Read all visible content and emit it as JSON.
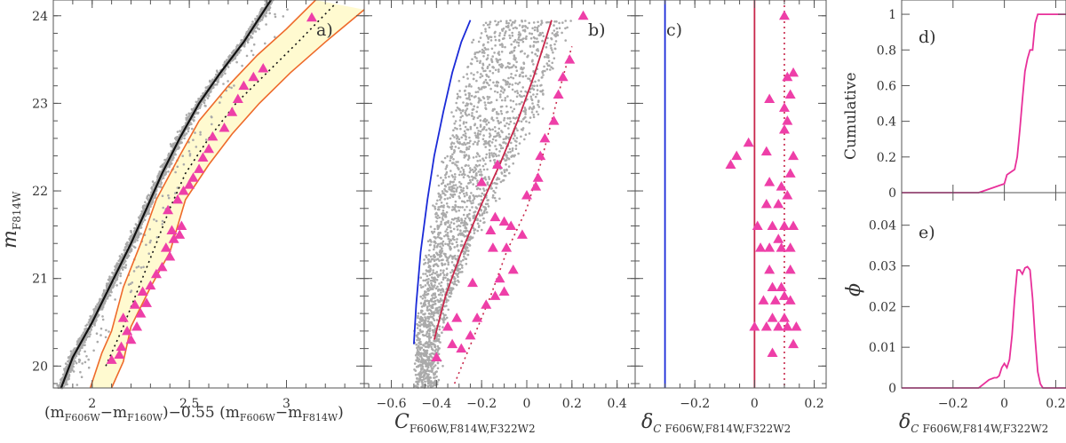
{
  "colors": {
    "triangle": "#ee3fa8",
    "band_edge": "#ee6a2a",
    "band_fill": "#fffad0",
    "fiducial": "#111111",
    "blue_line": "#1a2ad8",
    "red_line": "#c8264a",
    "pink_line": "#e8309a",
    "points": "#aaaaaa"
  },
  "chart_data": [
    {
      "panel": "a)",
      "type": "scatter",
      "xlabel": "(m F606W − m F160W) − 0.55 (m F606W − m F814W)",
      "ylabel": "m F814W",
      "xlim": [
        1.8,
        3.4
      ],
      "ylim": [
        24.18,
        19.75
      ],
      "xticks": [
        "2",
        "2.5",
        "3"
      ],
      "yticks": [
        "20",
        "21",
        "22",
        "23",
        "24"
      ],
      "fiducial": [
        [
          1.84,
          19.75
        ],
        [
          1.9,
          20.1
        ],
        [
          2.0,
          20.5
        ],
        [
          2.1,
          20.95
        ],
        [
          2.2,
          21.4
        ],
        [
          2.28,
          21.8
        ],
        [
          2.36,
          22.2
        ],
        [
          2.45,
          22.6
        ],
        [
          2.55,
          23.0
        ],
        [
          2.66,
          23.35
        ],
        [
          2.78,
          23.7
        ],
        [
          2.92,
          24.18
        ]
      ],
      "binary_line": [
        [
          2.07,
          20.0
        ],
        [
          2.16,
          20.45
        ],
        [
          2.24,
          20.9
        ],
        [
          2.33,
          21.4
        ],
        [
          2.4,
          21.8
        ],
        [
          2.48,
          22.2
        ],
        [
          2.6,
          22.6
        ],
        [
          2.74,
          23.0
        ],
        [
          2.9,
          23.35
        ],
        [
          3.06,
          23.7
        ],
        [
          3.27,
          24.18
        ]
      ],
      "band_left": [
        [
          1.99,
          19.75
        ],
        [
          2.05,
          20.15
        ],
        [
          2.1,
          20.4
        ],
        [
          2.16,
          20.9
        ],
        [
          2.25,
          21.4
        ],
        [
          2.33,
          21.9
        ],
        [
          2.45,
          22.4
        ],
        [
          2.55,
          22.8
        ],
        [
          2.7,
          23.2
        ],
        [
          2.85,
          23.55
        ],
        [
          3.0,
          23.85
        ],
        [
          3.15,
          24.18
        ]
      ],
      "band_right": [
        [
          2.1,
          19.75
        ],
        [
          2.16,
          20.05
        ],
        [
          2.2,
          20.45
        ],
        [
          2.3,
          20.9
        ],
        [
          2.4,
          21.3
        ],
        [
          2.48,
          21.9
        ],
        [
          2.6,
          22.3
        ],
        [
          2.72,
          22.65
        ],
        [
          2.86,
          23.0
        ],
        [
          3.02,
          23.35
        ],
        [
          3.2,
          23.7
        ],
        [
          3.4,
          24.07
        ]
      ],
      "binaries": [
        [
          2.1,
          20.07
        ],
        [
          2.14,
          20.13
        ],
        [
          2.15,
          20.22
        ],
        [
          2.2,
          20.3
        ],
        [
          2.18,
          20.4
        ],
        [
          2.23,
          20.45
        ],
        [
          2.16,
          20.55
        ],
        [
          2.25,
          20.6
        ],
        [
          2.22,
          20.7
        ],
        [
          2.28,
          20.72
        ],
        [
          2.26,
          20.85
        ],
        [
          2.3,
          20.92
        ],
        [
          2.33,
          21.05
        ],
        [
          2.36,
          21.13
        ],
        [
          2.4,
          21.25
        ],
        [
          2.38,
          21.35
        ],
        [
          2.42,
          21.45
        ],
        [
          2.45,
          21.5
        ],
        [
          2.41,
          21.55
        ],
        [
          2.46,
          21.6
        ],
        [
          2.39,
          21.78
        ],
        [
          2.44,
          21.9
        ],
        [
          2.47,
          22.0
        ],
        [
          2.5,
          22.07
        ],
        [
          2.52,
          22.15
        ],
        [
          2.55,
          22.25
        ],
        [
          2.57,
          22.38
        ],
        [
          2.6,
          22.48
        ],
        [
          2.62,
          22.62
        ],
        [
          2.68,
          22.72
        ],
        [
          2.72,
          22.9
        ],
        [
          2.75,
          23.05
        ],
        [
          2.78,
          23.2
        ],
        [
          2.83,
          23.3
        ],
        [
          2.88,
          23.4
        ],
        [
          3.13,
          23.98
        ]
      ]
    },
    {
      "panel": "b)",
      "type": "scatter",
      "xlabel": "C F606W,F814W,F322W2",
      "xlim": [
        -0.72,
        0.48
      ],
      "ylim": [
        24.18,
        19.75
      ],
      "xticks": [
        "−0.6",
        "−0.4",
        "−0.2",
        "0",
        "0.2",
        "0.4"
      ],
      "blue_line": [
        [
          -0.5,
          20.25
        ],
        [
          -0.49,
          20.7
        ],
        [
          -0.47,
          21.3
        ],
        [
          -0.44,
          21.9
        ],
        [
          -0.41,
          22.4
        ],
        [
          -0.37,
          22.9
        ],
        [
          -0.33,
          23.35
        ],
        [
          -0.29,
          23.7
        ],
        [
          -0.25,
          23.95
        ]
      ],
      "red_line": [
        [
          -0.41,
          20.3
        ],
        [
          -0.36,
          20.8
        ],
        [
          -0.29,
          21.3
        ],
        [
          -0.2,
          21.85
        ],
        [
          -0.12,
          22.3
        ],
        [
          -0.04,
          22.8
        ],
        [
          0.03,
          23.3
        ],
        [
          0.08,
          23.7
        ],
        [
          0.11,
          23.95
        ]
      ],
      "dotted_line": [
        [
          -0.32,
          19.8
        ],
        [
          -0.24,
          20.3
        ],
        [
          -0.16,
          20.8
        ],
        [
          -0.09,
          21.3
        ],
        [
          0.0,
          21.8
        ],
        [
          0.06,
          22.3
        ],
        [
          0.11,
          22.8
        ],
        [
          0.16,
          23.3
        ],
        [
          0.2,
          23.65
        ]
      ],
      "binaries": [
        [
          -0.4,
          20.1
        ],
        [
          -0.33,
          20.25
        ],
        [
          -0.29,
          20.2
        ],
        [
          -0.25,
          20.35
        ],
        [
          -0.35,
          20.45
        ],
        [
          -0.31,
          20.55
        ],
        [
          -0.22,
          20.55
        ],
        [
          -0.18,
          20.7
        ],
        [
          -0.14,
          20.8
        ],
        [
          -0.1,
          20.85
        ],
        [
          -0.12,
          21.0
        ],
        [
          -0.24,
          20.95
        ],
        [
          -0.06,
          21.1
        ],
        [
          -0.15,
          21.35
        ],
        [
          -0.09,
          21.35
        ],
        [
          -0.02,
          21.5
        ],
        [
          -0.07,
          21.6
        ],
        [
          -0.1,
          21.65
        ],
        [
          -0.14,
          21.7
        ],
        [
          -0.16,
          21.55
        ],
        [
          0.0,
          21.95
        ],
        [
          0.04,
          22.05
        ],
        [
          -0.2,
          22.1
        ],
        [
          0.05,
          22.15
        ],
        [
          -0.13,
          22.3
        ],
        [
          0.06,
          22.4
        ],
        [
          0.08,
          22.6
        ],
        [
          0.12,
          22.8
        ],
        [
          0.14,
          23.1
        ],
        [
          0.16,
          23.3
        ],
        [
          0.19,
          23.5
        ],
        [
          0.25,
          24.0
        ]
      ]
    },
    {
      "panel": "c)",
      "type": "scatter",
      "xlabel": "δC F606W,F814W,F322W2",
      "xlim": [
        -0.4,
        0.24
      ],
      "ylim": [
        24.18,
        19.75
      ],
      "xticks": [
        "−0.2",
        "0",
        "0.2"
      ],
      "blue_line_x": -0.3,
      "red_line_x": 0.0,
      "dotted_line_x": 0.1,
      "binaries": [
        [
          0.06,
          20.15
        ],
        [
          0.13,
          20.25
        ],
        [
          0.0,
          20.45
        ],
        [
          0.04,
          20.45
        ],
        [
          0.08,
          20.45
        ],
        [
          0.11,
          20.45
        ],
        [
          0.14,
          20.45
        ],
        [
          0.06,
          20.55
        ],
        [
          0.1,
          20.55
        ],
        [
          0.03,
          20.75
        ],
        [
          0.07,
          20.75
        ],
        [
          0.1,
          20.8
        ],
        [
          0.12,
          20.75
        ],
        [
          0.06,
          20.9
        ],
        [
          0.09,
          20.9
        ],
        [
          0.05,
          21.1
        ],
        [
          0.12,
          21.1
        ],
        [
          0.02,
          21.35
        ],
        [
          0.05,
          21.35
        ],
        [
          0.09,
          21.35
        ],
        [
          0.12,
          21.35
        ],
        [
          0.08,
          21.45
        ],
        [
          0.01,
          21.6
        ],
        [
          0.06,
          21.6
        ],
        [
          0.1,
          21.6
        ],
        [
          0.13,
          21.6
        ],
        [
          0.04,
          21.85
        ],
        [
          0.08,
          21.85
        ],
        [
          0.11,
          21.95
        ],
        [
          0.09,
          22.05
        ],
        [
          0.05,
          22.1
        ],
        [
          0.12,
          22.2
        ],
        [
          -0.08,
          22.3
        ],
        [
          -0.06,
          22.4
        ],
        [
          0.13,
          22.4
        ],
        [
          0.04,
          22.45
        ],
        [
          -0.02,
          22.55
        ],
        [
          0.1,
          22.7
        ],
        [
          0.11,
          22.8
        ],
        [
          0.1,
          22.95
        ],
        [
          0.05,
          23.05
        ],
        [
          0.12,
          23.1
        ],
        [
          0.11,
          23.3
        ],
        [
          0.13,
          23.35
        ],
        [
          0.1,
          24.0
        ]
      ]
    },
    {
      "panel": "d)",
      "type": "line",
      "ylabel": "Cumulative",
      "xlim": [
        -0.4,
        0.24
      ],
      "ylim": [
        0,
        1.08
      ],
      "yticks": [
        "0",
        "0.2",
        "0.4",
        "0.6",
        "0.8",
        "1"
      ],
      "x": [
        -0.4,
        -0.1,
        -0.08,
        -0.06,
        -0.04,
        -0.02,
        0.0,
        0.01,
        0.02,
        0.03,
        0.04,
        0.05,
        0.06,
        0.07,
        0.08,
        0.09,
        0.1,
        0.11,
        0.12,
        0.13,
        0.14,
        0.24
      ],
      "y": [
        0,
        0,
        0.01,
        0.02,
        0.03,
        0.04,
        0.05,
        0.1,
        0.11,
        0.12,
        0.13,
        0.2,
        0.35,
        0.52,
        0.68,
        0.75,
        0.8,
        0.8,
        0.95,
        1,
        1,
        1
      ]
    },
    {
      "panel": "e)",
      "type": "line",
      "ylabel": "ϕ",
      "xlabel": "δC F606W,F814W,F322W2",
      "xlim": [
        -0.4,
        0.24
      ],
      "ylim": [
        0,
        0.048
      ],
      "xticks": [
        "−0.2",
        "0",
        "0.2"
      ],
      "yticks": [
        "0",
        "0.01",
        "0.02",
        "0.03",
        "0.04"
      ],
      "x": [
        -0.4,
        -0.1,
        -0.08,
        -0.06,
        -0.04,
        -0.03,
        -0.02,
        -0.01,
        0.0,
        0.01,
        0.02,
        0.03,
        0.04,
        0.05,
        0.06,
        0.07,
        0.08,
        0.09,
        0.1,
        0.11,
        0.12,
        0.13,
        0.14,
        0.15,
        0.24
      ],
      "y": [
        0,
        0,
        0.001,
        0.002,
        0.0025,
        0.0025,
        0.003,
        0.005,
        0.006,
        0.005,
        0.007,
        0.013,
        0.022,
        0.029,
        0.029,
        0.028,
        0.0295,
        0.0298,
        0.029,
        0.022,
        0.012,
        0.004,
        0.001,
        0,
        0
      ]
    }
  ]
}
